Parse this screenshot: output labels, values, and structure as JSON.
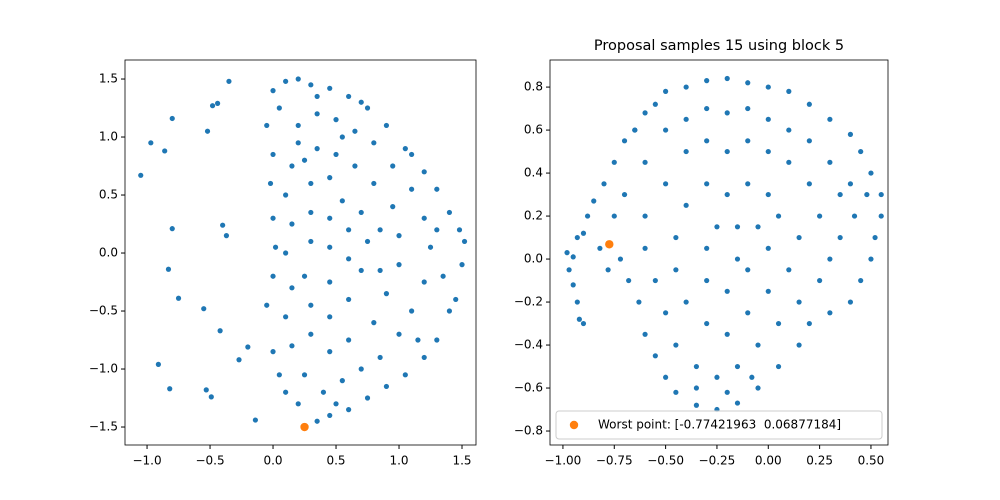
{
  "chart_data": [
    {
      "type": "scatter",
      "xlim": [
        -1.175,
        1.611
      ],
      "ylim": [
        -1.655,
        1.664
      ],
      "xticks": [
        {
          "value": -1,
          "label": "−1.0"
        },
        {
          "value": -0.5,
          "label": "−0.5"
        },
        {
          "value": 0,
          "label": "0.0"
        },
        0.5,
        {
          "value": 1,
          "label": "1.0"
        },
        1.5
      ],
      "yticks": [
        {
          "value": -1.5,
          "label": "−1.5"
        },
        {
          "value": -1,
          "label": "−1.0"
        },
        {
          "value": -0.5,
          "label": "−0.5"
        },
        {
          "value": 0,
          "label": "0.0"
        },
        0.5,
        {
          "value": 1,
          "label": "1.0"
        },
        1.5
      ],
      "series": [
        {
          "color": "#1f77b4",
          "x": [
            -1.05,
            -0.97,
            -0.86,
            -0.8,
            -0.8,
            -0.83,
            -0.75,
            -0.55,
            -0.91,
            -0.82,
            -0.53,
            -0.49,
            -0.52,
            -0.48,
            -0.44,
            -0.35,
            -0.4,
            -0.42,
            -0.37,
            -0.27,
            -0.2,
            -0.14,
            0.0,
            0.1,
            0.2,
            0.3,
            0.45,
            0.6,
            0.75,
            0.9,
            1.05,
            1.2,
            1.3,
            1.4,
            1.48,
            1.52,
            1.5,
            1.45,
            1.4,
            1.3,
            1.2,
            1.05,
            0.9,
            0.75,
            0.6,
            0.45,
            0.35,
            0.2,
            0.1,
            0.05,
            0.0,
            -0.05,
            0.0,
            0.02,
            0.0,
            -0.02,
            0.0,
            -0.05,
            0.05,
            0.2,
            0.35,
            0.5,
            0.65,
            0.8,
            0.95,
            1.1,
            1.2,
            1.25,
            1.2,
            1.1,
            1.0,
            0.85,
            0.7,
            0.55,
            0.4,
            0.25,
            0.15,
            0.1,
            0.15,
            0.1,
            0.15,
            0.1,
            0.15,
            0.2,
            0.35,
            0.5,
            0.65,
            0.8,
            0.95,
            1.0,
            1.0,
            0.9,
            0.8,
            0.6,
            0.45,
            0.3,
            0.3,
            0.25,
            0.3,
            0.3,
            0.3,
            0.45,
            0.55,
            0.7,
            0.75,
            0.7,
            0.6,
            0.45,
            0.45,
            0.45,
            0.45,
            0.6,
            0.6,
            0.85,
            0.85,
            1.1,
            1.3,
            1.35,
            1.15,
            0.5,
            0.35,
            0.7,
            0.55,
            0.25
          ],
          "values": [
            0.67,
            0.95,
            0.88,
            1.16,
            0.21,
            -0.14,
            -0.39,
            -0.48,
            -0.96,
            -1.17,
            -1.18,
            -1.24,
            1.05,
            1.27,
            1.29,
            1.48,
            0.24,
            -0.67,
            0.15,
            -0.92,
            -0.81,
            -1.44,
            1.4,
            1.48,
            1.5,
            1.45,
            1.42,
            1.35,
            1.25,
            1.1,
            0.9,
            0.7,
            0.55,
            0.35,
            0.2,
            0.1,
            -0.1,
            -0.4,
            -0.5,
            -0.75,
            -0.9,
            -1.05,
            -1.15,
            -1.25,
            -1.35,
            -1.4,
            -1.45,
            -1.3,
            -1.2,
            -1.05,
            -0.85,
            -0.45,
            -0.2,
            0.05,
            0.3,
            0.6,
            0.85,
            1.1,
            1.25,
            1.1,
            1.2,
            1.15,
            1.05,
            0.95,
            0.75,
            0.55,
            0.3,
            0.05,
            -0.25,
            -0.5,
            -0.7,
            -0.9,
            -1.0,
            -1.1,
            -1.2,
            -1.05,
            -0.8,
            -0.55,
            -0.3,
            0.0,
            0.25,
            0.5,
            0.75,
            0.95,
            0.9,
            0.85,
            0.75,
            0.6,
            0.4,
            0.15,
            -0.1,
            -0.35,
            -0.6,
            -0.75,
            -0.85,
            -0.7,
            -0.45,
            -0.2,
            0.1,
            0.35,
            0.6,
            0.65,
            0.45,
            0.35,
            0.1,
            -0.15,
            -0.4,
            -0.55,
            -0.25,
            0.05,
            0.3,
            0.2,
            -0.05,
            0.2,
            -0.15,
            0.85,
            0.2,
            -0.2,
            -0.75,
            -1.3,
            1.35,
            1.3,
            1.0,
            0.8
          ]
        },
        {
          "color": "#ff7f0e",
          "x": [
            0.25
          ],
          "values": [
            -1.5
          ]
        }
      ]
    },
    {
      "type": "scatter",
      "title": "Proposal samples 15 using block 5",
      "xlim": [
        -1.063,
        0.583
      ],
      "ylim": [
        -0.865,
        0.926
      ],
      "legend": "lower left",
      "xticks": [
        {
          "value": -1,
          "label": "−1.00"
        },
        {
          "value": -0.75,
          "label": "−0.75"
        },
        {
          "value": -0.5,
          "label": "−0.50"
        },
        {
          "value": -0.25,
          "label": "−0.25"
        },
        {
          "value": 0,
          "label": "0.00"
        },
        0.25,
        {
          "value": 0.5,
          "label": "0.50"
        }
      ],
      "yticks": [
        {
          "value": -0.8,
          "label": "−0.8"
        },
        {
          "value": -0.6,
          "label": "−0.6"
        },
        {
          "value": -0.4,
          "label": "−0.4"
        },
        {
          "value": -0.2,
          "label": "−0.2"
        },
        {
          "value": 0,
          "label": "0.0"
        },
        0.2,
        0.4,
        0.6,
        0.8
      ],
      "series": [
        {
          "color": "#1f77b4",
          "x": [
            -0.98,
            -0.97,
            -0.95,
            -0.93,
            -0.92,
            -0.9,
            -0.95,
            -0.9,
            -0.93,
            -0.88,
            -0.85,
            -0.8,
            -0.75,
            -0.7,
            -0.65,
            -0.6,
            -0.55,
            -0.5,
            -0.4,
            -0.3,
            -0.2,
            -0.1,
            0.0,
            0.1,
            0.2,
            0.3,
            0.4,
            0.45,
            0.5,
            0.55,
            0.55,
            0.52,
            0.5,
            0.45,
            0.4,
            0.3,
            0.2,
            0.15,
            0.05,
            -0.05,
            -0.15,
            -0.25,
            -0.35,
            -0.45,
            -0.5,
            -0.55,
            -0.6,
            -0.63,
            -0.68,
            -0.72,
            -0.78,
            -0.82,
            -0.7,
            -0.6,
            -0.5,
            -0.4,
            -0.3,
            -0.2,
            -0.1,
            0.0,
            0.1,
            0.2,
            0.3,
            0.4,
            0.42,
            0.35,
            0.3,
            0.25,
            0.15,
            0.05,
            -0.05,
            -0.15,
            -0.25,
            -0.35,
            -0.45,
            -0.5,
            -0.55,
            -0.6,
            -0.6,
            -0.5,
            -0.4,
            -0.3,
            -0.2,
            -0.1,
            0.0,
            0.1,
            0.2,
            0.25,
            0.15,
            0.1,
            0.0,
            -0.1,
            -0.2,
            -0.3,
            -0.4,
            -0.45,
            -0.45,
            -0.4,
            -0.3,
            -0.2,
            -0.1,
            0.0,
            0.05,
            0.0,
            -0.1,
            -0.2,
            -0.3,
            -0.3,
            -0.25,
            -0.15,
            -0.05,
            -0.15,
            -0.35,
            -0.2,
            -0.08,
            0.35,
            0.48,
            -0.65,
            -0.75
          ],
          "values": [
            0.03,
            -0.05,
            -0.12,
            -0.2,
            -0.28,
            -0.3,
            0.01,
            0.12,
            0.1,
            0.2,
            0.27,
            0.35,
            0.45,
            0.55,
            0.6,
            0.68,
            0.72,
            0.78,
            0.8,
            0.83,
            0.84,
            0.82,
            0.8,
            0.78,
            0.72,
            0.65,
            0.58,
            0.5,
            0.4,
            0.3,
            0.2,
            0.1,
            0.0,
            -0.1,
            -0.2,
            -0.25,
            -0.3,
            -0.4,
            -0.5,
            -0.6,
            -0.67,
            -0.7,
            -0.68,
            -0.62,
            -0.55,
            -0.45,
            -0.35,
            -0.2,
            -0.1,
            0.0,
            -0.05,
            0.05,
            0.3,
            0.45,
            0.6,
            0.65,
            0.7,
            0.68,
            0.7,
            0.65,
            0.6,
            0.55,
            0.45,
            0.35,
            0.2,
            0.1,
            0.0,
            -0.1,
            -0.2,
            -0.3,
            -0.4,
            -0.5,
            -0.55,
            -0.5,
            -0.4,
            -0.25,
            -0.1,
            0.05,
            0.2,
            0.35,
            0.5,
            0.55,
            0.5,
            0.55,
            0.5,
            0.45,
            0.35,
            0.2,
            0.1,
            -0.05,
            -0.15,
            -0.25,
            -0.35,
            -0.3,
            -0.2,
            -0.05,
            0.1,
            0.25,
            0.35,
            0.3,
            0.35,
            0.3,
            0.2,
            0.05,
            -0.05,
            -0.15,
            -0.1,
            0.05,
            0.15,
            0.15,
            0.15,
            0.0,
            -0.6,
            -0.62,
            -0.55,
            0.3,
            0.3,
            0.6,
            0.2
          ]
        },
        {
          "name": "Worst point: [-0.77421963  0.06877184]",
          "color": "#ff7f0e",
          "x": [
            -0.77421963
          ],
          "values": [
            0.06877184
          ]
        }
      ]
    }
  ]
}
